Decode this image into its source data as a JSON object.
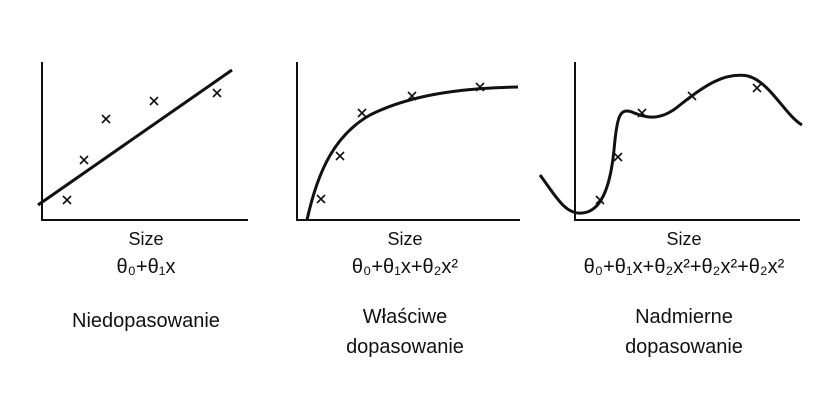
{
  "panels": [
    {
      "axis_label": "Size",
      "formula": "θ₀+θ₁x",
      "caption": [
        "Niedopasowanie"
      ]
    },
    {
      "axis_label": "Size",
      "formula": "θ₀+θ₁x+θ₂x²",
      "caption": [
        "Właściwe",
        "dopasowanie"
      ]
    },
    {
      "axis_label": "Size",
      "formula": "θ₀+θ₁x+θ₂x²+θ₂x²+θ₂x²",
      "caption": [
        "Nadmierne",
        "dopasowanie"
      ]
    }
  ]
}
